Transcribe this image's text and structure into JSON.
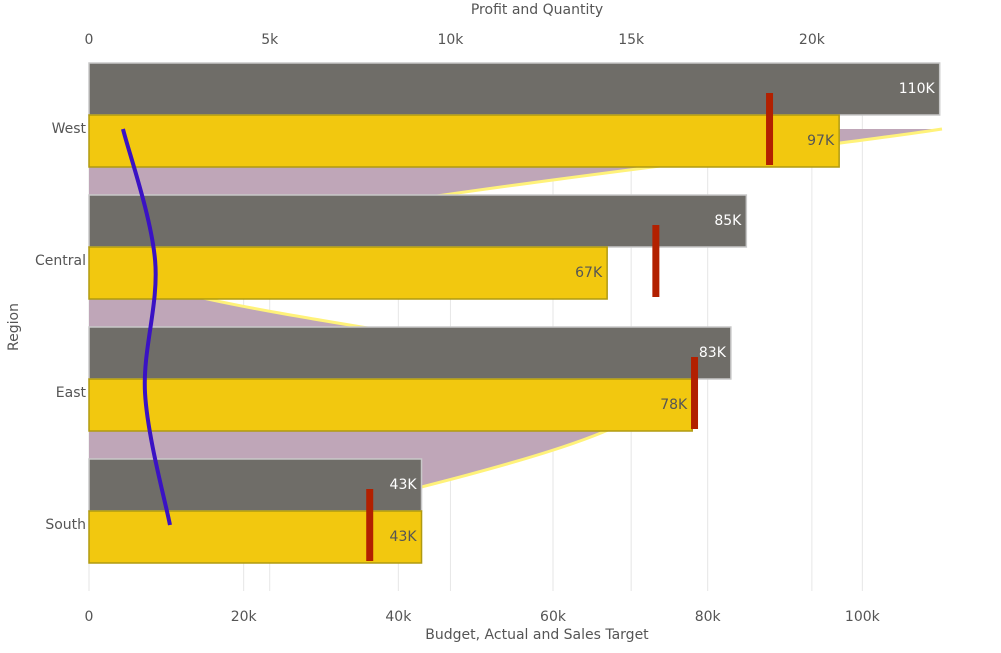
{
  "chart_data": {
    "type": "bar",
    "orientation": "horizontal",
    "x_title": "Budget, Actual and Sales Target",
    "x2_title": "Profit and Quantity",
    "y_title": "Region",
    "categories": [
      "West",
      "Central",
      "East",
      "South"
    ],
    "xlim": [
      0,
      110300
    ],
    "xticks": [
      0,
      {
        "value": 20000,
        "label": "20k"
      },
      {
        "value": 40000,
        "label": "40k"
      },
      {
        "value": 60000,
        "label": "60k"
      },
      {
        "value": 80000,
        "label": "80k"
      },
      {
        "value": 100000,
        "label": "100k"
      }
    ],
    "x2lim": [
      0,
      23600
    ],
    "x2ticks": [
      0,
      {
        "value": 5000,
        "label": "5k"
      },
      {
        "value": 10000,
        "label": "10k"
      },
      {
        "value": 15000,
        "label": "15k"
      },
      {
        "value": 20000,
        "label": "20k"
      }
    ],
    "grid": true,
    "series": [
      {
        "kind": "area",
        "axis": "x2",
        "color": "#bfa6b8",
        "line_color": "#fff27a",
        "values": [
          23600,
          1100,
          15500,
          5200
        ]
      },
      {
        "kind": "bar",
        "color": "#6f6d68",
        "label_color": "#ffffff",
        "values": [
          110000,
          85000,
          83000,
          43000
        ],
        "value_labels": [
          "110K",
          "85K",
          "83K",
          "43K"
        ]
      },
      {
        "kind": "bar",
        "color": "#f2c80f",
        "label_color": "#555555",
        "values": [
          97000,
          67000,
          78000,
          43000
        ],
        "value_labels": [
          "97K",
          "67K",
          "78K",
          "43K"
        ]
      },
      {
        "kind": "marker",
        "color": "#b22000",
        "values": [
          88000,
          73300,
          78300,
          36300
        ]
      },
      {
        "kind": "line",
        "axis": "x2",
        "color": "#3a12c4",
        "values": [
          940,
          1830,
          1550,
          2240
        ]
      }
    ]
  }
}
